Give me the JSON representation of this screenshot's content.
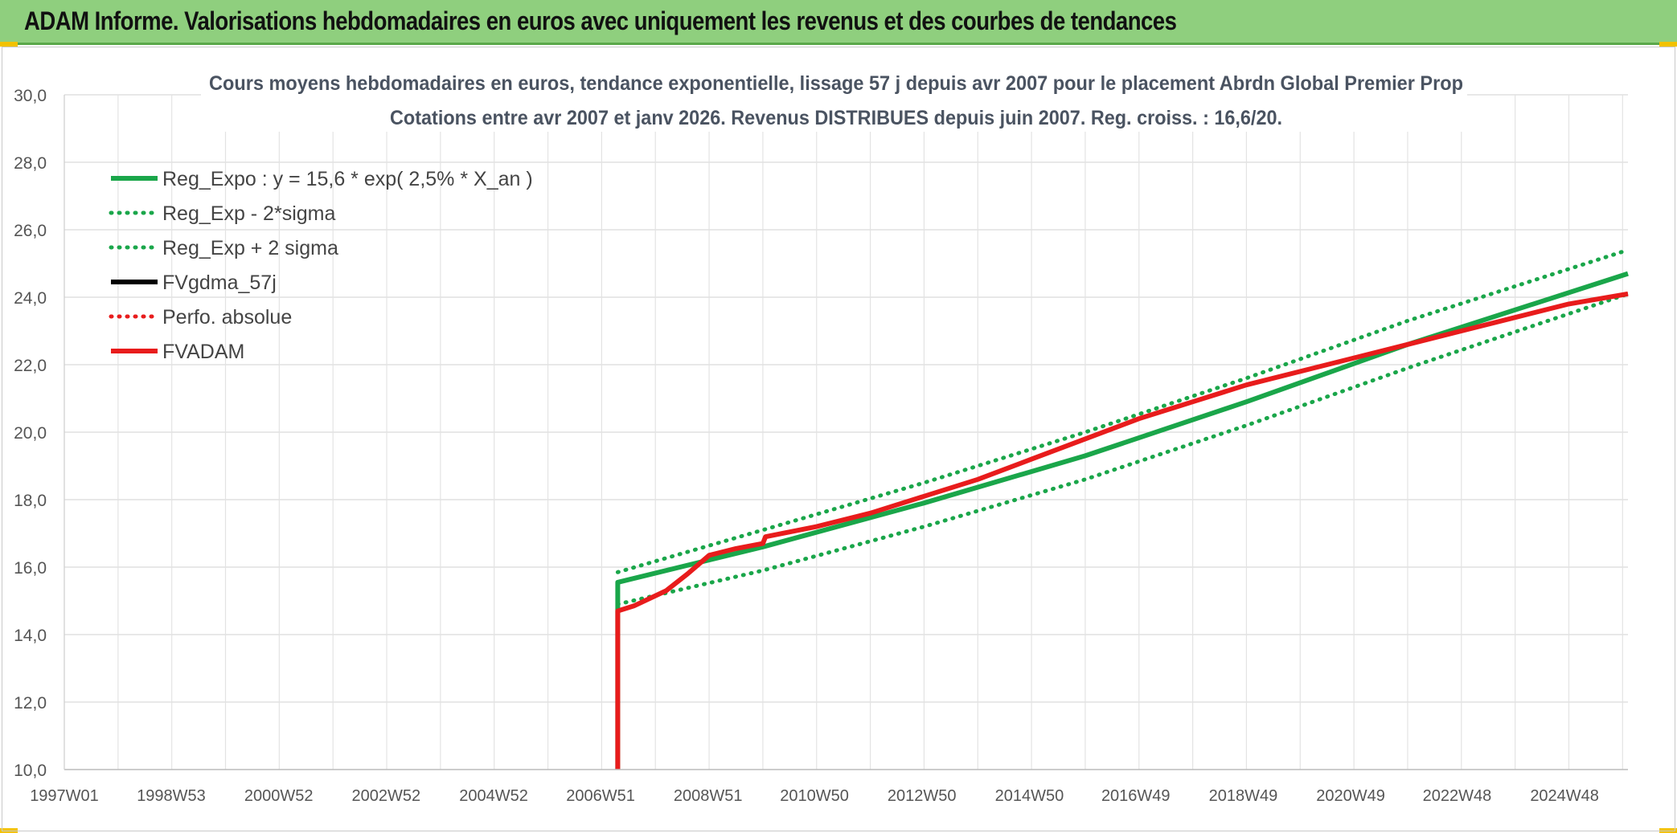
{
  "banner": {
    "title": "ADAM Informe. Valorisations hebdomadaires en euros avec uniquement les revenus et des courbes de tendances"
  },
  "chart_data": {
    "type": "line",
    "title": "Cours moyens hebdomadaires en euros, tendance exponentielle, lissage 57 j depuis avr 2007 pour le placement Abrdn Global Premier Prop",
    "subtitle": "Cotations entre avr 2007 et janv 2026. Revenus DISTRIBUES depuis juin 2007. Reg. croiss. : 16,6/20.",
    "xlabel": "",
    "ylabel": "",
    "ylim": [
      10,
      30
    ],
    "y_ticks": [
      "10,0",
      "12,0",
      "14,0",
      "16,0",
      "18,0",
      "20,0",
      "22,0",
      "24,0",
      "26,0",
      "28,0",
      "30,0"
    ],
    "xlim": [
      1997.0,
      2026.1
    ],
    "x_ticks": [
      {
        "label": "1997W01",
        "year": 1997.0
      },
      {
        "label": "1998W53",
        "year": 1998.99
      },
      {
        "label": "2000W52",
        "year": 2000.99
      },
      {
        "label": "2002W52",
        "year": 2002.99
      },
      {
        "label": "2004W52",
        "year": 2004.99
      },
      {
        "label": "2006W51",
        "year": 2006.98
      },
      {
        "label": "2008W51",
        "year": 2008.98
      },
      {
        "label": "2010W50",
        "year": 2010.96
      },
      {
        "label": "2012W50",
        "year": 2012.96
      },
      {
        "label": "2014W50",
        "year": 2014.96
      },
      {
        "label": "2016W49",
        "year": 2016.94
      },
      {
        "label": "2018W49",
        "year": 2018.94
      },
      {
        "label": "2020W49",
        "year": 2020.94
      },
      {
        "label": "2022W48",
        "year": 2022.92
      },
      {
        "label": "2024W48",
        "year": 2024.92
      }
    ],
    "grid": true,
    "legend_placement": "top-left",
    "series": [
      {
        "name": "Reg_Expo : y = 15,6 * exp( 2,5% *  X_an )",
        "color": "#1aa64a",
        "style": "solid",
        "points": [
          [
            2007.3,
            10.0
          ],
          [
            2007.3,
            15.55
          ],
          [
            2010.0,
            16.6
          ],
          [
            2013.0,
            17.9
          ],
          [
            2016.0,
            19.3
          ],
          [
            2019.0,
            20.9
          ],
          [
            2022.0,
            22.6
          ],
          [
            2026.1,
            24.7
          ]
        ]
      },
      {
        "name": "Reg_Exp - 2*sigma",
        "color": "#1aa64a",
        "style": "dotted",
        "points": [
          [
            2007.3,
            14.9
          ],
          [
            2010.0,
            15.9
          ],
          [
            2013.0,
            17.2
          ],
          [
            2016.0,
            18.6
          ],
          [
            2019.0,
            20.2
          ],
          [
            2022.0,
            21.9
          ],
          [
            2026.1,
            24.1
          ]
        ]
      },
      {
        "name": "Reg_Exp + 2 sigma",
        "color": "#1aa64a",
        "style": "dotted",
        "points": [
          [
            2007.3,
            15.85
          ],
          [
            2010.0,
            17.1
          ],
          [
            2013.0,
            18.5
          ],
          [
            2016.0,
            20.0
          ],
          [
            2019.0,
            21.6
          ],
          [
            2022.0,
            23.3
          ],
          [
            2026.1,
            25.4
          ]
        ]
      },
      {
        "name": "FVgdma_57j",
        "color": "#000000",
        "style": "solid",
        "points": [
          [
            2007.3,
            14.7
          ],
          [
            2007.6,
            14.85
          ],
          [
            2008.2,
            15.3
          ],
          [
            2008.6,
            15.8
          ],
          [
            2009.0,
            16.35
          ],
          [
            2009.5,
            16.55
          ],
          [
            2010.0,
            16.7
          ],
          [
            2010.05,
            16.9
          ],
          [
            2011.0,
            17.2
          ],
          [
            2012.0,
            17.6
          ],
          [
            2013.0,
            18.1
          ],
          [
            2014.0,
            18.6
          ],
          [
            2015.0,
            19.2
          ],
          [
            2016.0,
            19.8
          ],
          [
            2017.0,
            20.4
          ],
          [
            2018.0,
            20.9
          ],
          [
            2019.0,
            21.4
          ],
          [
            2020.0,
            21.8
          ],
          [
            2021.0,
            22.2
          ],
          [
            2022.0,
            22.6
          ],
          [
            2023.0,
            23.0
          ],
          [
            2024.0,
            23.4
          ],
          [
            2025.0,
            23.8
          ],
          [
            2026.1,
            24.1
          ]
        ]
      },
      {
        "name": "Perfo. absolue",
        "color": "#e81c1c",
        "style": "dotted",
        "points": [
          [
            2007.3,
            14.7
          ],
          [
            2007.6,
            14.85
          ],
          [
            2008.2,
            15.3
          ],
          [
            2008.6,
            15.8
          ],
          [
            2009.0,
            16.35
          ],
          [
            2009.5,
            16.55
          ],
          [
            2010.0,
            16.7
          ],
          [
            2010.05,
            16.9
          ],
          [
            2011.0,
            17.2
          ],
          [
            2012.0,
            17.6
          ],
          [
            2013.0,
            18.1
          ],
          [
            2014.0,
            18.6
          ],
          [
            2015.0,
            19.2
          ],
          [
            2016.0,
            19.8
          ],
          [
            2017.0,
            20.4
          ],
          [
            2018.0,
            20.9
          ],
          [
            2019.0,
            21.4
          ],
          [
            2020.0,
            21.8
          ],
          [
            2021.0,
            22.2
          ],
          [
            2022.0,
            22.6
          ],
          [
            2023.0,
            23.0
          ],
          [
            2024.0,
            23.4
          ],
          [
            2025.0,
            23.8
          ],
          [
            2026.1,
            24.1
          ]
        ]
      },
      {
        "name": "FVADAM",
        "color": "#e81c1c",
        "style": "solid",
        "points": [
          [
            2007.3,
            10.0
          ],
          [
            2007.3,
            14.7
          ],
          [
            2007.6,
            14.85
          ],
          [
            2008.2,
            15.3
          ],
          [
            2008.6,
            15.8
          ],
          [
            2009.0,
            16.35
          ],
          [
            2009.5,
            16.55
          ],
          [
            2010.0,
            16.7
          ],
          [
            2010.05,
            16.9
          ],
          [
            2011.0,
            17.2
          ],
          [
            2012.0,
            17.6
          ],
          [
            2013.0,
            18.1
          ],
          [
            2014.0,
            18.6
          ],
          [
            2015.0,
            19.2
          ],
          [
            2016.0,
            19.8
          ],
          [
            2017.0,
            20.4
          ],
          [
            2018.0,
            20.9
          ],
          [
            2019.0,
            21.4
          ],
          [
            2020.0,
            21.8
          ],
          [
            2021.0,
            22.2
          ],
          [
            2022.0,
            22.6
          ],
          [
            2023.0,
            23.0
          ],
          [
            2024.0,
            23.4
          ],
          [
            2025.0,
            23.8
          ],
          [
            2026.1,
            24.1
          ]
        ]
      }
    ]
  }
}
